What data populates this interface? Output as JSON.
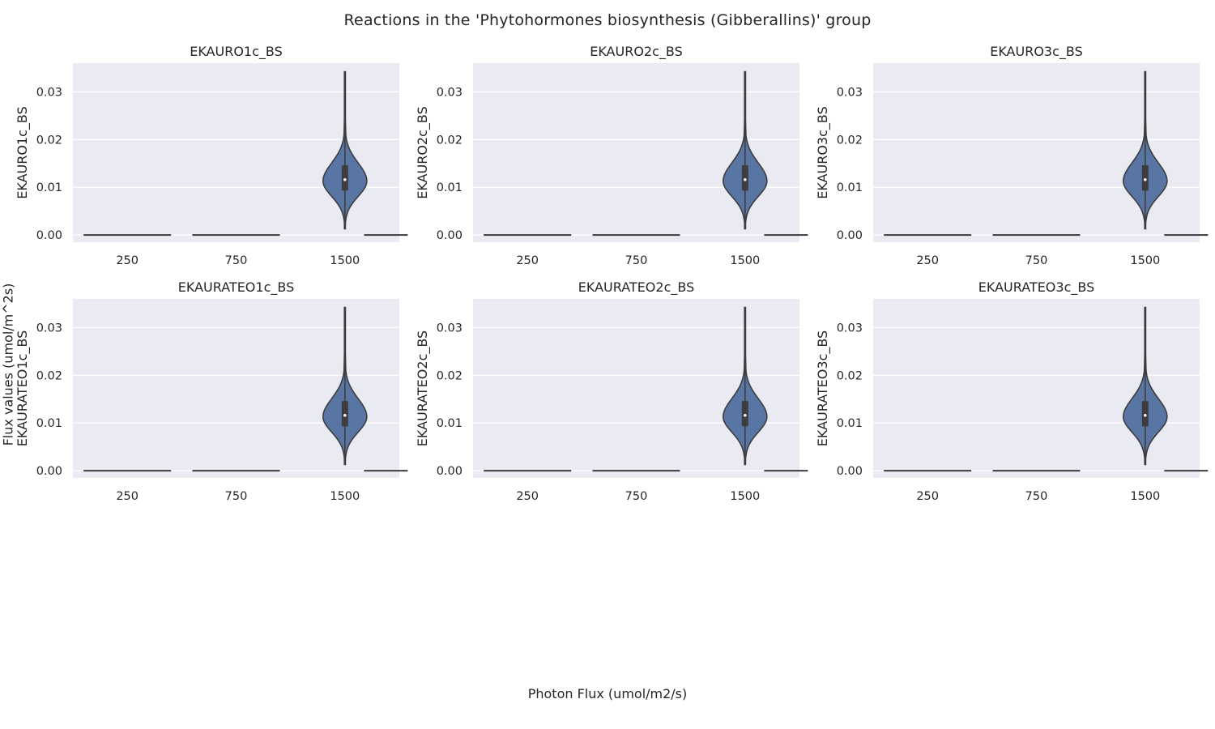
{
  "figure": {
    "title": "Reactions in the 'Phytohormones biosynthesis (Gibberallins)' group",
    "xlabel": "Photon Flux (umol/m2/s)",
    "ylabel": "Flux values (umol/m^2s)"
  },
  "colors": {
    "panel_bg": "#eaeaf2",
    "grid": "#ffffff",
    "violin_fill": "#5875a4",
    "violin_edge": "#3d3d3d"
  },
  "chart_data": [
    {
      "type": "violin",
      "title": "EKAURO1c_BS",
      "ylabel": "EKAURO1c_BS",
      "categories": [
        "250",
        "750",
        "1500"
      ],
      "yticks": [
        "0.00",
        "0.01",
        "0.02",
        "0.03"
      ],
      "ylim": [
        -0.0015,
        0.036
      ],
      "grid": true,
      "series": [
        {
          "category": "250",
          "distribution": "constant",
          "value": 0.0
        },
        {
          "category": "750",
          "distribution": "constant",
          "value": 0.0
        },
        {
          "category": "1500",
          "distribution": "kde",
          "min": 0.0013,
          "max": 0.0342,
          "q1": 0.0093,
          "median": 0.0116,
          "q3": 0.0146,
          "extra_zero_line": true
        }
      ]
    },
    {
      "type": "violin",
      "title": "EKAURO2c_BS",
      "ylabel": "EKAURO2c_BS",
      "categories": [
        "250",
        "750",
        "1500"
      ],
      "yticks": [
        "0.00",
        "0.01",
        "0.02",
        "0.03"
      ],
      "ylim": [
        -0.0015,
        0.036
      ],
      "grid": true,
      "series": [
        {
          "category": "250",
          "distribution": "constant",
          "value": 0.0
        },
        {
          "category": "750",
          "distribution": "constant",
          "value": 0.0
        },
        {
          "category": "1500",
          "distribution": "kde",
          "min": 0.0013,
          "max": 0.0342,
          "q1": 0.0093,
          "median": 0.0116,
          "q3": 0.0146,
          "extra_zero_line": true
        }
      ]
    },
    {
      "type": "violin",
      "title": "EKAURO3c_BS",
      "ylabel": "EKAURO3c_BS",
      "categories": [
        "250",
        "750",
        "1500"
      ],
      "yticks": [
        "0.00",
        "0.01",
        "0.02",
        "0.03"
      ],
      "ylim": [
        -0.0015,
        0.036
      ],
      "grid": true,
      "series": [
        {
          "category": "250",
          "distribution": "constant",
          "value": 0.0
        },
        {
          "category": "750",
          "distribution": "constant",
          "value": 0.0
        },
        {
          "category": "1500",
          "distribution": "kde",
          "min": 0.0013,
          "max": 0.0342,
          "q1": 0.0093,
          "median": 0.0116,
          "q3": 0.0146,
          "extra_zero_line": true
        }
      ]
    },
    {
      "type": "violin",
      "title": "EKAURATEO1c_BS",
      "ylabel": "EKAURATEO1c_BS",
      "categories": [
        "250",
        "750",
        "1500"
      ],
      "yticks": [
        "0.00",
        "0.01",
        "0.02",
        "0.03"
      ],
      "ylim": [
        -0.0015,
        0.036
      ],
      "grid": true,
      "series": [
        {
          "category": "250",
          "distribution": "constant",
          "value": 0.0
        },
        {
          "category": "750",
          "distribution": "constant",
          "value": 0.0
        },
        {
          "category": "1500",
          "distribution": "kde",
          "min": 0.0013,
          "max": 0.0342,
          "q1": 0.0093,
          "median": 0.0116,
          "q3": 0.0146,
          "extra_zero_line": true
        }
      ]
    },
    {
      "type": "violin",
      "title": "EKAURATEO2c_BS",
      "ylabel": "EKAURATEO2c_BS",
      "categories": [
        "250",
        "750",
        "1500"
      ],
      "yticks": [
        "0.00",
        "0.01",
        "0.02",
        "0.03"
      ],
      "ylim": [
        -0.0015,
        0.036
      ],
      "grid": true,
      "series": [
        {
          "category": "250",
          "distribution": "constant",
          "value": 0.0
        },
        {
          "category": "750",
          "distribution": "constant",
          "value": 0.0
        },
        {
          "category": "1500",
          "distribution": "kde",
          "min": 0.0013,
          "max": 0.0342,
          "q1": 0.0093,
          "median": 0.0116,
          "q3": 0.0146,
          "extra_zero_line": true
        }
      ]
    },
    {
      "type": "violin",
      "title": "EKAURATEO3c_BS",
      "ylabel": "EKAURATEO3c_BS",
      "categories": [
        "250",
        "750",
        "1500"
      ],
      "yticks": [
        "0.00",
        "0.01",
        "0.02",
        "0.03"
      ],
      "ylim": [
        -0.0015,
        0.036
      ],
      "grid": true,
      "series": [
        {
          "category": "250",
          "distribution": "constant",
          "value": 0.0
        },
        {
          "category": "750",
          "distribution": "constant",
          "value": 0.0
        },
        {
          "category": "1500",
          "distribution": "kde",
          "min": 0.0013,
          "max": 0.0342,
          "q1": 0.0093,
          "median": 0.0116,
          "q3": 0.0146,
          "extra_zero_line": true
        }
      ]
    }
  ]
}
